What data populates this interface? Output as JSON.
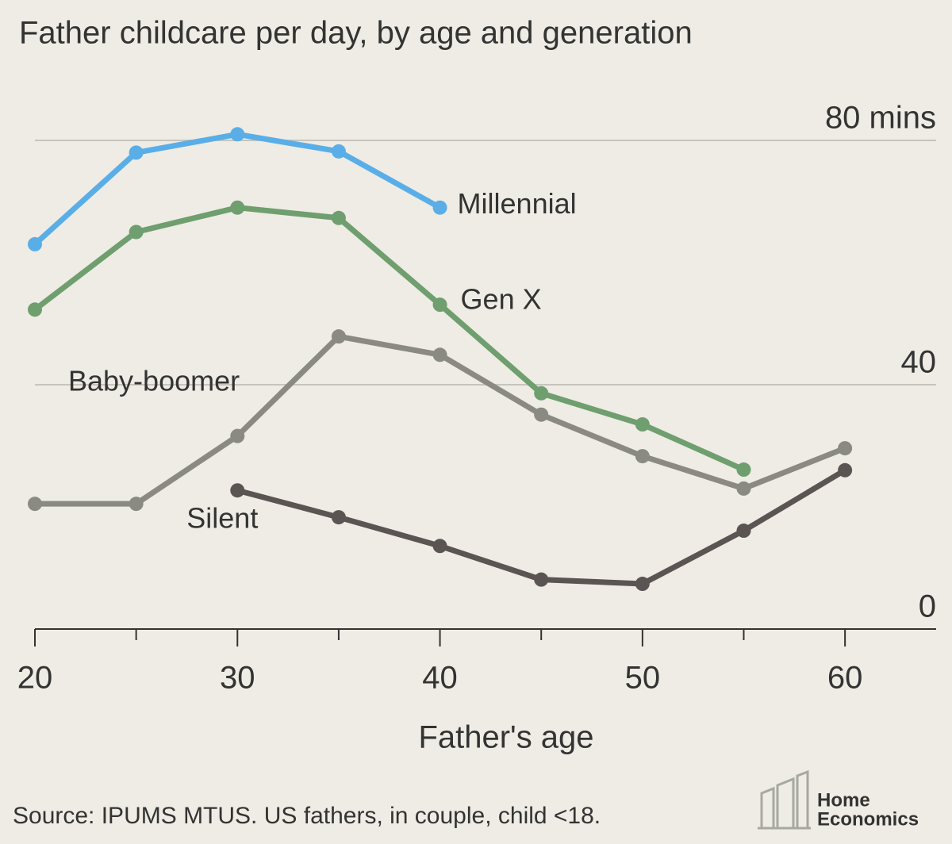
{
  "chart_data": {
    "type": "line",
    "title": "Father childcare per day, by age and generation",
    "x_label": "Father's age",
    "source": "Source: IPUMS MTUS. US fathers, in couple, child <18.",
    "brand": [
      "Home",
      "Economics"
    ],
    "x": [
      20,
      25,
      30,
      35,
      40,
      45,
      50,
      55,
      60
    ],
    "xlim": [
      20,
      64.5
    ],
    "xticks": [
      20,
      30,
      40,
      50,
      60
    ],
    "xminor_ticks": [
      25,
      35,
      45,
      55
    ],
    "ylim": [
      0,
      80
    ],
    "yticks": [
      0,
      40,
      {
        "value": 80,
        "label": "80 mins"
      }
    ],
    "grid": true,
    "series": [
      {
        "name": "Millennial",
        "color": "#5aaee8",
        "values": [
          63,
          78,
          81,
          78.2,
          69,
          null,
          null,
          null,
          null
        ]
      },
      {
        "name": "Gen X",
        "color": "#6f9e6f",
        "values": [
          52.3,
          65,
          69,
          67.3,
          53.1,
          38.6,
          33.5,
          26.1,
          null
        ]
      },
      {
        "name": "Baby-boomer",
        "color": "#8a8a82",
        "values": [
          20.5,
          20.5,
          31.6,
          47.9,
          44.9,
          35.1,
          28.3,
          23,
          29.6
        ]
      },
      {
        "name": "Silent",
        "color": "#5a5552",
        "values": [
          null,
          null,
          22.7,
          18.3,
          13.6,
          8.1,
          7.4,
          16.1,
          26
        ]
      }
    ]
  }
}
